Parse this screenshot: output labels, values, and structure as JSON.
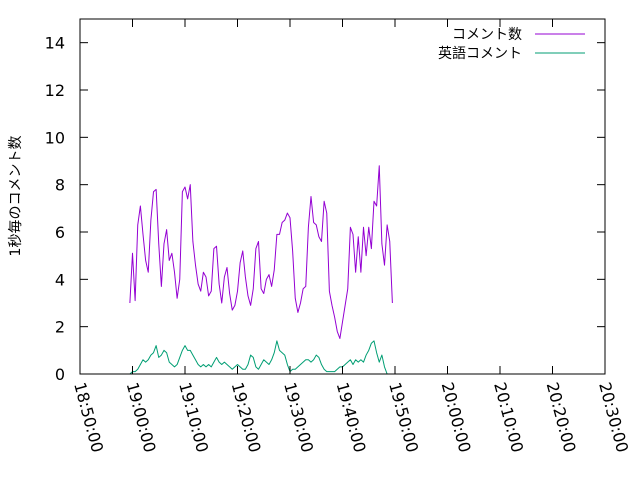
{
  "chart_data": {
    "type": "line",
    "ylabel": "1秒毎のコメント数",
    "xlabel": "",
    "ylim": [
      0,
      15
    ],
    "xlim": [
      "18:50:00",
      "20:30:00"
    ],
    "y_ticks": [
      "0",
      "2",
      "4",
      "6",
      "8",
      "10",
      "12",
      "14"
    ],
    "x_ticks": [
      "18:50:00",
      "19:00:00",
      "19:10:00",
      "19:20:00",
      "19:30:00",
      "19:40:00",
      "19:50:00",
      "20:00:00",
      "20:10:00",
      "20:20:00",
      "20:30:00"
    ],
    "legend_position": "top-right",
    "grid": false,
    "series": [
      {
        "name": "コメント数",
        "color": "#9400d3",
        "points": [
          [
            "18:59:30",
            3.0
          ],
          [
            "19:00:00",
            5.1
          ],
          [
            "19:00:30",
            3.1
          ],
          [
            "19:01:00",
            6.3
          ],
          [
            "19:01:30",
            7.1
          ],
          [
            "19:02:00",
            5.9
          ],
          [
            "19:02:30",
            4.8
          ],
          [
            "19:03:00",
            4.3
          ],
          [
            "19:03:30",
            6.5
          ],
          [
            "19:04:00",
            7.7
          ],
          [
            "19:04:30",
            7.8
          ],
          [
            "19:05:00",
            5.5
          ],
          [
            "19:05:30",
            3.7
          ],
          [
            "19:06:00",
            5.5
          ],
          [
            "19:06:30",
            6.1
          ],
          [
            "19:07:00",
            4.8
          ],
          [
            "19:07:30",
            5.1
          ],
          [
            "19:08:00",
            4.3
          ],
          [
            "19:08:30",
            3.2
          ],
          [
            "19:09:00",
            4.0
          ],
          [
            "19:09:30",
            7.7
          ],
          [
            "19:10:00",
            7.9
          ],
          [
            "19:10:30",
            7.4
          ],
          [
            "19:11:00",
            8.0
          ],
          [
            "19:11:30",
            5.6
          ],
          [
            "19:12:00",
            4.6
          ],
          [
            "19:12:30",
            3.8
          ],
          [
            "19:13:00",
            3.5
          ],
          [
            "19:13:30",
            4.3
          ],
          [
            "19:14:00",
            4.1
          ],
          [
            "19:14:30",
            3.3
          ],
          [
            "19:15:00",
            3.5
          ],
          [
            "19:15:30",
            5.3
          ],
          [
            "19:16:00",
            5.4
          ],
          [
            "19:16:30",
            3.8
          ],
          [
            "19:17:00",
            3.0
          ],
          [
            "19:17:30",
            4.1
          ],
          [
            "19:18:00",
            4.5
          ],
          [
            "19:18:30",
            3.4
          ],
          [
            "19:19:00",
            2.7
          ],
          [
            "19:19:30",
            2.9
          ],
          [
            "19:20:00",
            3.5
          ],
          [
            "19:20:30",
            4.7
          ],
          [
            "19:21:00",
            5.2
          ],
          [
            "19:21:30",
            4.1
          ],
          [
            "19:22:00",
            3.3
          ],
          [
            "19:22:30",
            2.9
          ],
          [
            "19:23:00",
            3.6
          ],
          [
            "19:23:30",
            5.3
          ],
          [
            "19:24:00",
            5.6
          ],
          [
            "19:24:30",
            3.6
          ],
          [
            "19:25:00",
            3.4
          ],
          [
            "19:25:30",
            4.0
          ],
          [
            "19:26:00",
            4.2
          ],
          [
            "19:26:30",
            3.7
          ],
          [
            "19:27:00",
            4.4
          ],
          [
            "19:27:30",
            5.9
          ],
          [
            "19:28:00",
            5.9
          ],
          [
            "19:28:30",
            6.4
          ],
          [
            "19:29:00",
            6.5
          ],
          [
            "19:29:30",
            6.8
          ],
          [
            "19:30:00",
            6.6
          ],
          [
            "19:30:30",
            5.2
          ],
          [
            "19:31:00",
            3.2
          ],
          [
            "19:31:30",
            2.6
          ],
          [
            "19:32:00",
            3.0
          ],
          [
            "19:32:30",
            3.6
          ],
          [
            "19:33:00",
            3.7
          ],
          [
            "19:33:30",
            6.2
          ],
          [
            "19:34:00",
            7.5
          ],
          [
            "19:34:30",
            6.4
          ],
          [
            "19:35:00",
            6.3
          ],
          [
            "19:35:30",
            5.8
          ],
          [
            "19:36:00",
            5.6
          ],
          [
            "19:36:30",
            7.3
          ],
          [
            "19:37:00",
            6.8
          ],
          [
            "19:37:30",
            3.5
          ],
          [
            "19:38:00",
            2.9
          ],
          [
            "19:38:30",
            2.4
          ],
          [
            "19:39:00",
            1.8
          ],
          [
            "19:39:30",
            1.5
          ],
          [
            "19:40:00",
            2.2
          ],
          [
            "19:40:30",
            2.9
          ],
          [
            "19:41:00",
            3.6
          ],
          [
            "19:41:30",
            6.2
          ],
          [
            "19:42:00",
            5.9
          ],
          [
            "19:42:30",
            4.3
          ],
          [
            "19:43:00",
            5.8
          ],
          [
            "19:43:30",
            4.3
          ],
          [
            "19:44:00",
            6.2
          ],
          [
            "19:44:30",
            5.0
          ],
          [
            "19:45:00",
            6.2
          ],
          [
            "19:45:30",
            5.3
          ],
          [
            "19:46:00",
            7.3
          ],
          [
            "19:46:30",
            7.1
          ],
          [
            "19:47:00",
            8.8
          ],
          [
            "19:47:30",
            5.5
          ],
          [
            "19:48:00",
            4.6
          ],
          [
            "19:48:30",
            6.3
          ],
          [
            "19:49:00",
            5.6
          ],
          [
            "19:49:30",
            3.0
          ]
        ]
      },
      {
        "name": "英語コメント",
        "color": "#009e73",
        "points": [
          [
            "18:59:30",
            0.0
          ],
          [
            "19:00:00",
            0.1
          ],
          [
            "19:00:30",
            0.1
          ],
          [
            "19:01:00",
            0.2
          ],
          [
            "19:01:30",
            0.4
          ],
          [
            "19:02:00",
            0.6
          ],
          [
            "19:02:30",
            0.5
          ],
          [
            "19:03:00",
            0.6
          ],
          [
            "19:03:30",
            0.8
          ],
          [
            "19:04:00",
            0.9
          ],
          [
            "19:04:30",
            1.2
          ],
          [
            "19:05:00",
            0.7
          ],
          [
            "19:05:30",
            0.8
          ],
          [
            "19:06:00",
            1.0
          ],
          [
            "19:06:30",
            0.9
          ],
          [
            "19:07:00",
            0.5
          ],
          [
            "19:07:30",
            0.4
          ],
          [
            "19:08:00",
            0.3
          ],
          [
            "19:08:30",
            0.4
          ],
          [
            "19:09:00",
            0.7
          ],
          [
            "19:09:30",
            1.0
          ],
          [
            "19:10:00",
            1.2
          ],
          [
            "19:10:30",
            1.0
          ],
          [
            "19:11:00",
            1.0
          ],
          [
            "19:11:30",
            0.8
          ],
          [
            "19:12:00",
            0.6
          ],
          [
            "19:12:30",
            0.4
          ],
          [
            "19:13:00",
            0.3
          ],
          [
            "19:13:30",
            0.4
          ],
          [
            "19:14:00",
            0.3
          ],
          [
            "19:14:30",
            0.4
          ],
          [
            "19:15:00",
            0.3
          ],
          [
            "19:15:30",
            0.5
          ],
          [
            "19:16:00",
            0.7
          ],
          [
            "19:16:30",
            0.5
          ],
          [
            "19:17:00",
            0.4
          ],
          [
            "19:17:30",
            0.5
          ],
          [
            "19:18:00",
            0.4
          ],
          [
            "19:18:30",
            0.3
          ],
          [
            "19:19:00",
            0.2
          ],
          [
            "19:19:30",
            0.3
          ],
          [
            "19:20:00",
            0.4
          ],
          [
            "19:20:30",
            0.3
          ],
          [
            "19:21:00",
            0.2
          ],
          [
            "19:21:30",
            0.2
          ],
          [
            "19:22:00",
            0.4
          ],
          [
            "19:22:30",
            0.8
          ],
          [
            "19:23:00",
            0.7
          ],
          [
            "19:23:30",
            0.3
          ],
          [
            "19:24:00",
            0.2
          ],
          [
            "19:24:30",
            0.4
          ],
          [
            "19:25:00",
            0.6
          ],
          [
            "19:25:30",
            0.5
          ],
          [
            "19:26:00",
            0.4
          ],
          [
            "19:26:30",
            0.6
          ],
          [
            "19:27:00",
            0.9
          ],
          [
            "19:27:30",
            1.4
          ],
          [
            "19:28:00",
            1.0
          ],
          [
            "19:28:30",
            0.9
          ],
          [
            "19:29:00",
            0.8
          ],
          [
            "19:29:30",
            0.4
          ],
          [
            "19:30:00",
            0.1
          ],
          [
            "19:30:30",
            0.2
          ],
          [
            "19:31:00",
            0.2
          ],
          [
            "19:31:30",
            0.3
          ],
          [
            "19:32:00",
            0.4
          ],
          [
            "19:32:30",
            0.5
          ],
          [
            "19:33:00",
            0.6
          ],
          [
            "19:33:30",
            0.6
          ],
          [
            "19:34:00",
            0.5
          ],
          [
            "19:34:30",
            0.6
          ],
          [
            "19:35:00",
            0.8
          ],
          [
            "19:35:30",
            0.7
          ],
          [
            "19:36:00",
            0.4
          ],
          [
            "19:36:30",
            0.2
          ],
          [
            "19:37:00",
            0.1
          ],
          [
            "19:37:30",
            0.1
          ],
          [
            "19:38:00",
            0.1
          ],
          [
            "19:38:30",
            0.1
          ],
          [
            "19:39:00",
            0.2
          ],
          [
            "19:39:30",
            0.3
          ],
          [
            "19:40:00",
            0.3
          ],
          [
            "19:40:30",
            0.4
          ],
          [
            "19:41:00",
            0.5
          ],
          [
            "19:41:30",
            0.6
          ],
          [
            "19:42:00",
            0.4
          ],
          [
            "19:42:30",
            0.6
          ],
          [
            "19:43:00",
            0.5
          ],
          [
            "19:43:30",
            0.6
          ],
          [
            "19:44:00",
            0.5
          ],
          [
            "19:44:30",
            0.8
          ],
          [
            "19:45:00",
            1.0
          ],
          [
            "19:45:30",
            1.3
          ],
          [
            "19:46:00",
            1.4
          ],
          [
            "19:46:30",
            0.9
          ],
          [
            "19:47:00",
            0.5
          ],
          [
            "19:47:30",
            0.8
          ],
          [
            "19:48:00",
            0.3
          ],
          [
            "19:48:30",
            0.0
          ]
        ]
      }
    ]
  }
}
